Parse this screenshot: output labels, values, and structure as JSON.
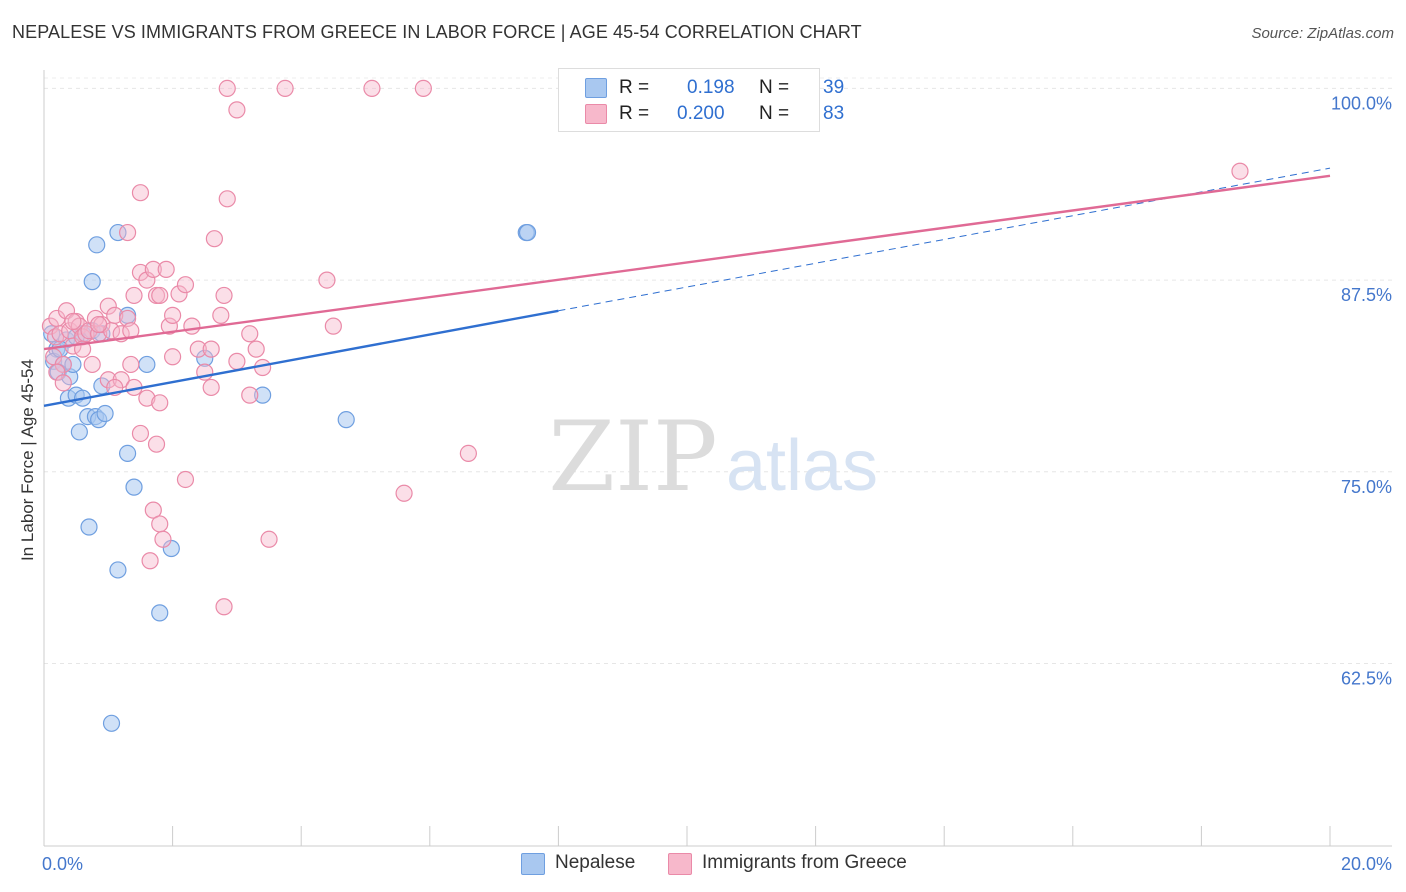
{
  "title": "NEPALESE VS IMMIGRANTS FROM GREECE IN LABOR FORCE | AGE 45-54 CORRELATION CHART",
  "source": "Source: ZipAtlas.com",
  "watermark": {
    "zip": "ZIP",
    "atlas": "atlas"
  },
  "legend": {
    "r_label": "R =",
    "n_label": "N =",
    "series": [
      {
        "name": "Nepalese",
        "r": "0.198",
        "n": "39",
        "color": "#a9c8f0",
        "stroke": "#6f9fe0",
        "line": "#2f6fd0"
      },
      {
        "name": "Immigrants from Greece",
        "r": "0.200",
        "n": "83",
        "color": "#f7b8cb",
        "stroke": "#ea8aa8",
        "line": "#e06a95"
      }
    ]
  },
  "chart_data": {
    "type": "scatter",
    "title": "NEPALESE VS IMMIGRANTS FROM GREECE IN LABOR FORCE | AGE 45-54 CORRELATION CHART",
    "xlabel": "",
    "ylabel": "In Labor Force | Age 45-54",
    "xlim": [
      0,
      20
    ],
    "ylim": [
      50.6,
      101.2
    ],
    "x_tick_labels": [
      "0.0%",
      "20.0%"
    ],
    "y_ticks": [
      62.5,
      75.0,
      87.5,
      100.0
    ],
    "y_tick_labels": [
      "62.5%",
      "75.0%",
      "87.5%",
      "100.0%"
    ],
    "grid": true,
    "series": [
      {
        "name": "Nepalese",
        "trend": {
          "x0": 0,
          "y0": 79.3,
          "x1": 8.0,
          "y1": 85.5,
          "dashed_to_x": 20.0,
          "dashed_to_y": 94.8
        },
        "points": [
          [
            0.12,
            84.0
          ],
          [
            0.2,
            83.0
          ],
          [
            0.15,
            82.2
          ],
          [
            0.3,
            82.0
          ],
          [
            0.22,
            81.5
          ],
          [
            0.35,
            83.6
          ],
          [
            0.4,
            81.2
          ],
          [
            0.45,
            82.0
          ],
          [
            0.38,
            79.8
          ],
          [
            0.5,
            80.0
          ],
          [
            0.6,
            79.8
          ],
          [
            0.55,
            77.6
          ],
          [
            0.68,
            78.6
          ],
          [
            0.8,
            78.6
          ],
          [
            0.85,
            78.4
          ],
          [
            0.9,
            80.6
          ],
          [
            0.95,
            78.8
          ],
          [
            0.6,
            84.0
          ],
          [
            0.75,
            84.2
          ],
          [
            1.15,
            90.6
          ],
          [
            0.82,
            89.8
          ],
          [
            0.75,
            87.4
          ],
          [
            1.3,
            85.2
          ],
          [
            1.6,
            82.0
          ],
          [
            2.5,
            82.4
          ],
          [
            3.4,
            80.0
          ],
          [
            1.3,
            76.2
          ],
          [
            1.4,
            74.0
          ],
          [
            0.7,
            71.4
          ],
          [
            1.15,
            68.6
          ],
          [
            1.98,
            70.0
          ],
          [
            1.8,
            65.8
          ],
          [
            1.05,
            58.6
          ],
          [
            7.5,
            90.6
          ],
          [
            7.52,
            90.6
          ],
          [
            4.7,
            78.4
          ],
          [
            0.25,
            83.0
          ],
          [
            0.5,
            83.8
          ],
          [
            0.9,
            84.0
          ]
        ]
      },
      {
        "name": "Immigrants from Greece",
        "trend": {
          "x0": 0,
          "y0": 83.0,
          "x1": 20.0,
          "y1": 94.3
        },
        "points": [
          [
            0.1,
            84.5
          ],
          [
            0.15,
            82.5
          ],
          [
            0.18,
            83.8
          ],
          [
            0.2,
            85.0
          ],
          [
            0.25,
            84.0
          ],
          [
            0.3,
            82.0
          ],
          [
            0.35,
            85.5
          ],
          [
            0.4,
            84.2
          ],
          [
            0.45,
            83.2
          ],
          [
            0.5,
            84.8
          ],
          [
            0.55,
            84.5
          ],
          [
            0.6,
            83.8
          ],
          [
            0.65,
            84.0
          ],
          [
            0.7,
            84.2
          ],
          [
            0.75,
            82.0
          ],
          [
            0.8,
            85.0
          ],
          [
            0.85,
            84.0
          ],
          [
            0.9,
            84.6
          ],
          [
            1.0,
            85.8
          ],
          [
            1.05,
            84.2
          ],
          [
            1.1,
            85.2
          ],
          [
            1.2,
            84.0
          ],
          [
            1.3,
            85.0
          ],
          [
            1.35,
            84.2
          ],
          [
            1.4,
            86.5
          ],
          [
            1.5,
            88.0
          ],
          [
            1.6,
            87.5
          ],
          [
            1.7,
            88.2
          ],
          [
            1.75,
            86.5
          ],
          [
            1.8,
            86.5
          ],
          [
            1.9,
            88.2
          ],
          [
            1.95,
            84.5
          ],
          [
            2.0,
            85.2
          ],
          [
            2.1,
            86.6
          ],
          [
            2.2,
            87.2
          ],
          [
            2.3,
            84.5
          ],
          [
            2.4,
            83.0
          ],
          [
            2.5,
            81.5
          ],
          [
            2.6,
            80.5
          ],
          [
            2.75,
            85.2
          ],
          [
            2.8,
            86.5
          ],
          [
            3.0,
            82.2
          ],
          [
            3.2,
            80.0
          ],
          [
            3.4,
            81.8
          ],
          [
            3.3,
            83.0
          ],
          [
            2.65,
            90.2
          ],
          [
            2.85,
            92.8
          ],
          [
            1.5,
            93.2
          ],
          [
            1.3,
            90.6
          ],
          [
            3.0,
            98.6
          ],
          [
            2.85,
            100.0
          ],
          [
            3.75,
            100.0
          ],
          [
            5.1,
            100.0
          ],
          [
            5.9,
            100.0
          ],
          [
            1.0,
            81.0
          ],
          [
            1.2,
            81.0
          ],
          [
            1.4,
            80.5
          ],
          [
            1.5,
            77.5
          ],
          [
            1.6,
            79.8
          ],
          [
            1.75,
            76.8
          ],
          [
            1.8,
            79.5
          ],
          [
            2.0,
            82.5
          ],
          [
            2.2,
            74.5
          ],
          [
            1.7,
            72.5
          ],
          [
            1.8,
            71.6
          ],
          [
            1.85,
            70.6
          ],
          [
            1.65,
            69.2
          ],
          [
            2.8,
            66.2
          ],
          [
            3.5,
            70.6
          ],
          [
            4.4,
            87.5
          ],
          [
            4.5,
            84.5
          ],
          [
            5.6,
            73.6
          ],
          [
            6.6,
            76.2
          ],
          [
            18.6,
            94.6
          ],
          [
            0.2,
            81.5
          ],
          [
            0.3,
            80.8
          ],
          [
            0.45,
            84.8
          ],
          [
            0.6,
            83.0
          ],
          [
            0.85,
            84.6
          ],
          [
            1.1,
            80.5
          ],
          [
            1.35,
            82.0
          ],
          [
            2.6,
            83.0
          ],
          [
            3.2,
            84.0
          ]
        ]
      }
    ]
  }
}
